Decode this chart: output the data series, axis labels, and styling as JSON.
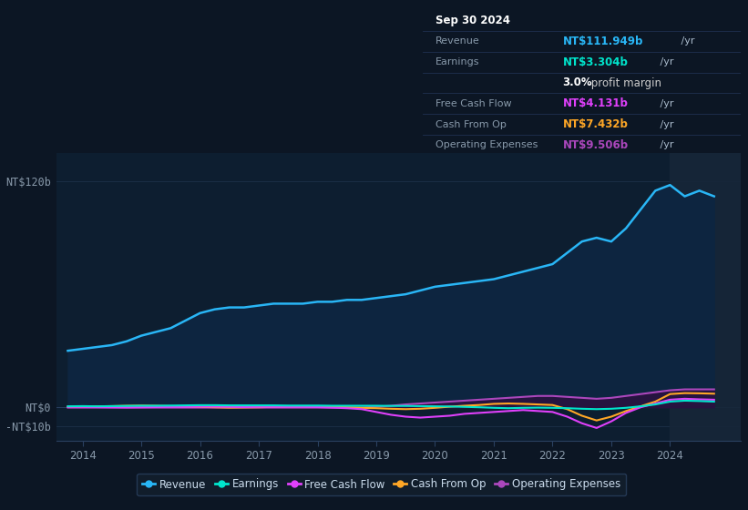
{
  "bg_color": "#0c1624",
  "plot_bg_color": "#0d1e30",
  "forecast_bg_color": "#162030",
  "grid_color": "#1e3050",
  "title_box_bg": "#050a10",
  "yticks_labels": [
    "NT$120b",
    "NT$0",
    "-NT$10b"
  ],
  "yticks_values": [
    120,
    0,
    -10
  ],
  "ylim": [
    -18,
    135
  ],
  "xlim": [
    2013.55,
    2025.2
  ],
  "xtick_years": [
    2014,
    2015,
    2016,
    2017,
    2018,
    2019,
    2020,
    2021,
    2022,
    2023,
    2024
  ],
  "forecast_start": 2024.0,
  "series": {
    "revenue": {
      "color": "#29b6f6",
      "fill_color": "#0d2540",
      "lw": 1.8,
      "data_x": [
        2013.75,
        2014.0,
        2014.25,
        2014.5,
        2014.75,
        2015.0,
        2015.25,
        2015.5,
        2015.75,
        2016.0,
        2016.25,
        2016.5,
        2016.75,
        2017.0,
        2017.25,
        2017.5,
        2017.75,
        2018.0,
        2018.25,
        2018.5,
        2018.75,
        2019.0,
        2019.25,
        2019.5,
        2019.75,
        2020.0,
        2020.25,
        2020.5,
        2020.75,
        2021.0,
        2021.25,
        2021.5,
        2021.75,
        2022.0,
        2022.25,
        2022.5,
        2022.75,
        2023.0,
        2023.25,
        2023.5,
        2023.75,
        2024.0,
        2024.25,
        2024.5,
        2024.75
      ],
      "data_y": [
        30,
        31,
        32,
        33,
        35,
        38,
        40,
        42,
        46,
        50,
        52,
        53,
        53,
        54,
        55,
        55,
        55,
        56,
        56,
        57,
        57,
        58,
        59,
        60,
        62,
        64,
        65,
        66,
        67,
        68,
        70,
        72,
        74,
        76,
        82,
        88,
        90,
        88,
        95,
        105,
        115,
        118,
        112,
        115,
        112
      ]
    },
    "earnings": {
      "color": "#00e5cc",
      "lw": 1.5,
      "data_x": [
        2013.75,
        2014.0,
        2014.25,
        2014.5,
        2014.75,
        2015.0,
        2015.25,
        2015.5,
        2015.75,
        2016.0,
        2016.25,
        2016.5,
        2016.75,
        2017.0,
        2017.25,
        2017.5,
        2017.75,
        2018.0,
        2018.25,
        2018.5,
        2018.75,
        2019.0,
        2019.25,
        2019.5,
        2019.75,
        2020.0,
        2020.25,
        2020.5,
        2020.75,
        2021.0,
        2021.25,
        2021.5,
        2021.75,
        2022.0,
        2022.25,
        2022.5,
        2022.75,
        2023.0,
        2023.25,
        2023.5,
        2023.75,
        2024.0,
        2024.25,
        2024.5,
        2024.75
      ],
      "data_y": [
        0.5,
        0.6,
        0.5,
        0.6,
        0.7,
        0.8,
        0.8,
        0.9,
        1.0,
        1.1,
        1.1,
        1.0,
        1.0,
        1.0,
        1.0,
        0.9,
        0.9,
        0.9,
        0.8,
        0.8,
        0.8,
        0.8,
        0.7,
        0.7,
        0.6,
        0.5,
        0.4,
        0.2,
        0.0,
        -0.3,
        -0.5,
        -0.3,
        -0.2,
        -0.3,
        -0.5,
        -0.8,
        -1.0,
        -0.8,
        -0.3,
        0.5,
        1.5,
        3.0,
        3.5,
        3.3,
        3.0
      ]
    },
    "free_cash_flow": {
      "color": "#e040fb",
      "lw": 1.5,
      "data_x": [
        2013.75,
        2014.0,
        2014.25,
        2014.5,
        2014.75,
        2015.0,
        2015.25,
        2015.5,
        2015.75,
        2016.0,
        2016.25,
        2016.5,
        2016.75,
        2017.0,
        2017.25,
        2017.5,
        2017.75,
        2018.0,
        2018.25,
        2018.5,
        2018.75,
        2019.0,
        2019.25,
        2019.5,
        2019.75,
        2020.0,
        2020.25,
        2020.5,
        2020.75,
        2021.0,
        2021.25,
        2021.5,
        2021.75,
        2022.0,
        2022.25,
        2022.5,
        2022.75,
        2023.0,
        2023.25,
        2023.5,
        2023.75,
        2024.0,
        2024.25,
        2024.5,
        2024.75
      ],
      "data_y": [
        0.2,
        0.2,
        0.1,
        0.0,
        -0.1,
        0.0,
        0.1,
        0.2,
        0.2,
        0.3,
        0.3,
        0.2,
        0.1,
        0.2,
        0.2,
        0.2,
        0.2,
        0.1,
        -0.2,
        -0.5,
        -1.0,
        -2.5,
        -4.0,
        -5.0,
        -5.5,
        -5.0,
        -4.5,
        -3.5,
        -3.0,
        -2.5,
        -2.0,
        -1.5,
        -2.0,
        -2.5,
        -5.0,
        -8.5,
        -11.0,
        -7.5,
        -3.0,
        0.0,
        2.0,
        4.0,
        4.5,
        4.2,
        4.0
      ]
    },
    "cash_from_op": {
      "color": "#ffa726",
      "lw": 1.5,
      "data_x": [
        2013.75,
        2014.0,
        2014.25,
        2014.5,
        2014.75,
        2015.0,
        2015.25,
        2015.5,
        2015.75,
        2016.0,
        2016.25,
        2016.5,
        2016.75,
        2017.0,
        2017.25,
        2017.5,
        2017.75,
        2018.0,
        2018.25,
        2018.5,
        2018.75,
        2019.0,
        2019.25,
        2019.5,
        2019.75,
        2020.0,
        2020.25,
        2020.5,
        2020.75,
        2021.0,
        2021.25,
        2021.5,
        2021.75,
        2022.0,
        2022.25,
        2022.5,
        2022.75,
        2023.0,
        2023.25,
        2023.5,
        2023.75,
        2024.0,
        2024.25,
        2024.5,
        2024.75
      ],
      "data_y": [
        0.3,
        0.4,
        0.5,
        0.6,
        0.8,
        0.9,
        0.8,
        0.6,
        0.4,
        0.2,
        0.0,
        -0.2,
        -0.1,
        0.0,
        0.2,
        0.4,
        0.5,
        0.4,
        0.2,
        0.0,
        -0.3,
        -0.5,
        -0.8,
        -1.0,
        -0.8,
        -0.3,
        0.3,
        0.8,
        1.2,
        1.8,
        2.0,
        1.8,
        1.5,
        1.2,
        -1.0,
        -4.5,
        -7.0,
        -5.0,
        -2.0,
        0.5,
        3.0,
        7.0,
        7.5,
        7.4,
        7.2
      ]
    },
    "operating_expenses": {
      "color": "#ab47bc",
      "fill_color": "#2d1040",
      "lw": 1.5,
      "data_x": [
        2013.75,
        2014.0,
        2014.25,
        2014.5,
        2014.75,
        2015.0,
        2015.25,
        2015.5,
        2015.75,
        2016.0,
        2016.25,
        2016.5,
        2016.75,
        2017.0,
        2017.25,
        2017.5,
        2017.75,
        2018.0,
        2018.25,
        2018.5,
        2018.75,
        2019.0,
        2019.25,
        2019.5,
        2019.75,
        2020.0,
        2020.25,
        2020.5,
        2020.75,
        2021.0,
        2021.25,
        2021.5,
        2021.75,
        2022.0,
        2022.25,
        2022.5,
        2022.75,
        2023.0,
        2023.25,
        2023.5,
        2023.75,
        2024.0,
        2024.25,
        2024.5,
        2024.75
      ],
      "data_y": [
        -0.2,
        -0.2,
        -0.2,
        -0.2,
        -0.2,
        -0.2,
        -0.2,
        -0.2,
        -0.2,
        -0.2,
        -0.2,
        -0.2,
        -0.2,
        -0.2,
        -0.2,
        -0.2,
        -0.2,
        -0.2,
        -0.2,
        -0.2,
        -0.2,
        0.3,
        0.8,
        1.5,
        2.0,
        2.5,
        3.0,
        3.5,
        4.0,
        4.5,
        5.0,
        5.5,
        6.0,
        6.0,
        5.5,
        5.0,
        4.5,
        5.0,
        6.0,
        7.0,
        8.0,
        9.0,
        9.5,
        9.5,
        9.5
      ]
    }
  },
  "legend": [
    {
      "label": "Revenue",
      "color": "#29b6f6"
    },
    {
      "label": "Earnings",
      "color": "#00e5cc"
    },
    {
      "label": "Free Cash Flow",
      "color": "#e040fb"
    },
    {
      "label": "Cash From Op",
      "color": "#ffa726"
    },
    {
      "label": "Operating Expenses",
      "color": "#ab47bc"
    }
  ],
  "info_box": {
    "title": "Sep 30 2024",
    "rows": [
      {
        "label": "Revenue",
        "value": "NT$111.949b",
        "suffix": " /yr",
        "value_color": "#29b6f6"
      },
      {
        "label": "Earnings",
        "value": "NT$3.304b",
        "suffix": " /yr",
        "value_color": "#00e5cc"
      },
      {
        "label": "",
        "bold": "3.0%",
        "rest": " profit margin",
        "value_color": "#ffffff"
      },
      {
        "label": "Free Cash Flow",
        "value": "NT$4.131b",
        "suffix": " /yr",
        "value_color": "#e040fb"
      },
      {
        "label": "Cash From Op",
        "value": "NT$7.432b",
        "suffix": " /yr",
        "value_color": "#ffa726"
      },
      {
        "label": "Operating Expenses",
        "value": "NT$9.506b",
        "suffix": " /yr",
        "value_color": "#ab47bc"
      }
    ]
  }
}
